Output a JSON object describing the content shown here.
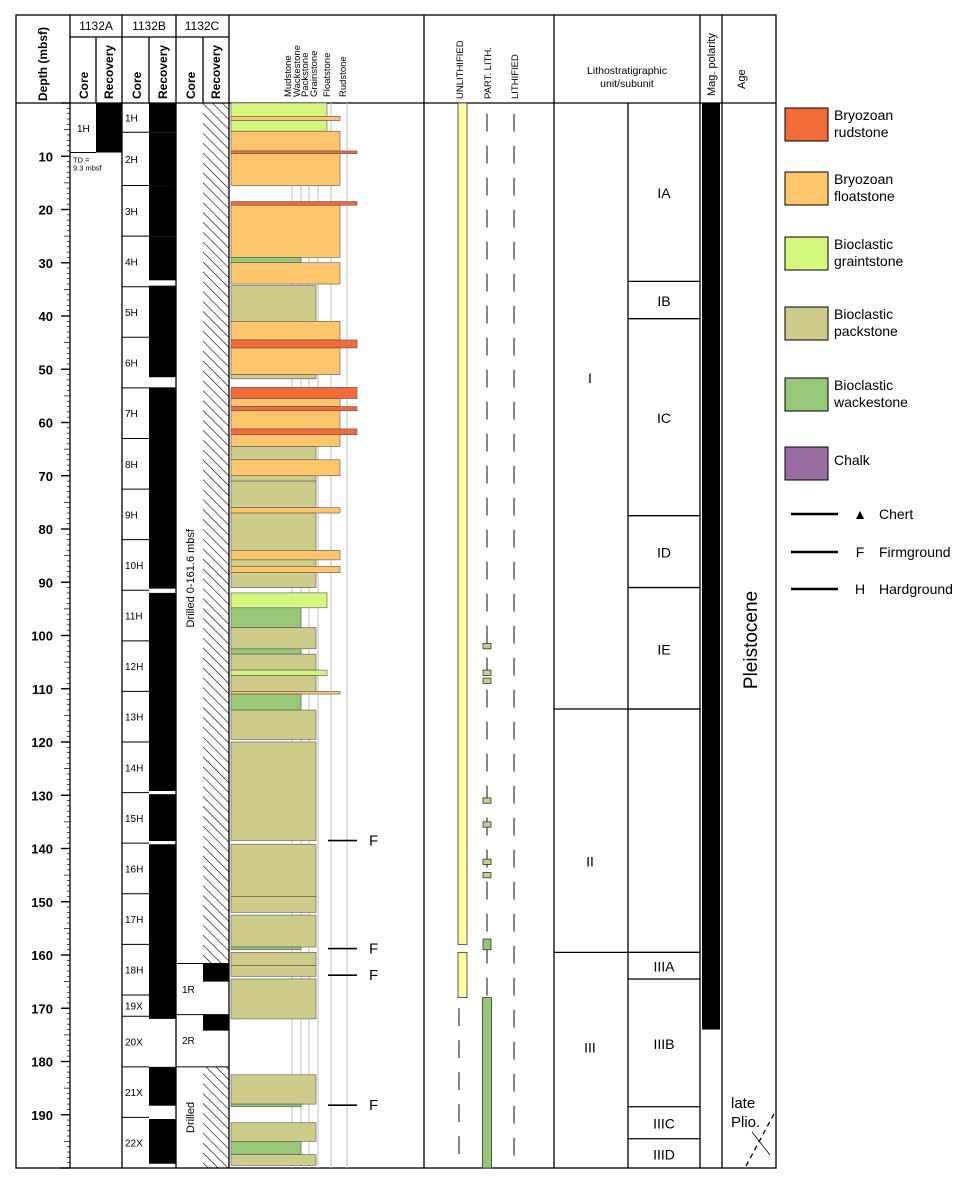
{
  "headers": {
    "depth": "Depth (mbsf)",
    "site_a": "1132A",
    "site_b": "1132B",
    "site_c": "1132C",
    "core": "Core",
    "recovery": "Recovery",
    "textures": [
      "Mudstone",
      "Wackestone",
      "Packstone",
      "Grainstone",
      "Floatstone",
      "Rudstone"
    ],
    "lithification": [
      "UNLITHIFIED",
      "PART. LITH.",
      "LITHIFIED"
    ],
    "litho_unit": "Lithostratigraphic unit/subunit",
    "mag_polarity": "Mag. polarity",
    "age": "Age"
  },
  "depth_axis": {
    "min": 0,
    "max": 200,
    "ticks": [
      10,
      20,
      30,
      40,
      50,
      60,
      70,
      80,
      90,
      100,
      110,
      120,
      130,
      140,
      150,
      160,
      170,
      180,
      190
    ]
  },
  "hole_1132A": {
    "cores": [
      {
        "name": "1H",
        "top": 0,
        "bottom": 9.3
      }
    ],
    "recovery": [
      {
        "top": 0,
        "bottom": 9.3
      }
    ],
    "note": [
      "TD =",
      "9.3 mbsf"
    ]
  },
  "hole_1132B": {
    "cores": [
      {
        "name": "1H",
        "top": 0,
        "bottom": 5.5
      },
      {
        "name": "2H",
        "top": 5.5,
        "bottom": 15.5
      },
      {
        "name": "3H",
        "top": 15.5,
        "bottom": 25
      },
      {
        "name": "4H",
        "top": 25,
        "bottom": 34.5
      },
      {
        "name": "5H",
        "top": 34.5,
        "bottom": 44
      },
      {
        "name": "6H",
        "top": 44,
        "bottom": 53.5
      },
      {
        "name": "7H",
        "top": 53.5,
        "bottom": 63
      },
      {
        "name": "8H",
        "top": 63,
        "bottom": 72.5
      },
      {
        "name": "9H",
        "top": 72.5,
        "bottom": 82
      },
      {
        "name": "10H",
        "top": 82,
        "bottom": 91.5
      },
      {
        "name": "11H",
        "top": 91.5,
        "bottom": 101
      },
      {
        "name": "12H",
        "top": 101,
        "bottom": 110.5
      },
      {
        "name": "13H",
        "top": 110.5,
        "bottom": 120
      },
      {
        "name": "14H",
        "top": 120,
        "bottom": 129.5
      },
      {
        "name": "15H",
        "top": 129.5,
        "bottom": 139
      },
      {
        "name": "16H",
        "top": 139,
        "bottom": 148.5
      },
      {
        "name": "17H",
        "top": 148.5,
        "bottom": 158
      },
      {
        "name": "18H",
        "top": 158,
        "bottom": 167.5
      },
      {
        "name": "19X",
        "top": 167.5,
        "bottom": 171.5
      },
      {
        "name": "20X",
        "top": 171.5,
        "bottom": 181
      },
      {
        "name": "21X",
        "top": 181,
        "bottom": 190.5
      },
      {
        "name": "22X",
        "top": 190.5,
        "bottom": 200
      }
    ],
    "recovery": [
      {
        "top": 0,
        "bottom": 5.5
      },
      {
        "top": 5.5,
        "bottom": 15.5
      },
      {
        "top": 15.5,
        "bottom": 25
      },
      {
        "top": 25,
        "bottom": 33.3
      },
      {
        "top": 34.3,
        "bottom": 51.5
      },
      {
        "top": 53.4,
        "bottom": 91.2
      },
      {
        "top": 92,
        "bottom": 129.2
      },
      {
        "top": 129.8,
        "bottom": 138.6
      },
      {
        "top": 139.2,
        "bottom": 172
      },
      {
        "top": 181,
        "bottom": 188.3
      },
      {
        "top": 190.8,
        "bottom": 199.2
      }
    ]
  },
  "hole_1132C": {
    "drilled_label": "Drilled 0-161.6 mbsf",
    "drilled_intervals": [
      {
        "top": 0,
        "bottom": 161.6
      },
      {
        "top": 181,
        "bottom": 200
      }
    ],
    "cores": [
      {
        "name": "1R",
        "top": 161.6,
        "bottom": 171.2
      },
      {
        "name": "2R",
        "top": 171.2,
        "bottom": 180.8
      }
    ],
    "recovery": [
      {
        "top": 161.6,
        "bottom": 165
      },
      {
        "top": 171.2,
        "bottom": 174.2
      }
    ],
    "drilled_short": "Drilled"
  },
  "lithologies": [
    {
      "name": "Bryozoan rudstone",
      "lines": [
        "Bryozoan",
        "rudstone"
      ],
      "color": "#f26b3a",
      "texture_index": 5
    },
    {
      "name": "Bryozoan floatstone",
      "lines": [
        "Bryozoan",
        "floatstone"
      ],
      "color": "#fdc66d",
      "texture_index": 4
    },
    {
      "name": "Bioclastic graintstone",
      "lines": [
        "Bioclastic",
        "graintstone"
      ],
      "color": "#d6f77d",
      "texture_index": 3
    },
    {
      "name": "Bioclastic packstone",
      "lines": [
        "Bioclastic",
        "packstone"
      ],
      "color": "#cdcc8b",
      "texture_index": 2
    },
    {
      "name": "Bioclastic wackestone",
      "lines": [
        "Bioclastic",
        "wackestone"
      ],
      "color": "#96c878",
      "texture_index": 1
    },
    {
      "name": "Chalk",
      "lines": [
        "Chalk"
      ],
      "color": "#9a6ea3",
      "texture_index": 0
    }
  ],
  "log_intervals": [
    {
      "top": 0,
      "bottom": 2.5,
      "lith": "Bioclastic graintstone"
    },
    {
      "top": 2.5,
      "bottom": 3.3,
      "lith": "Bryozoan floatstone"
    },
    {
      "top": 3.3,
      "bottom": 5.3,
      "lith": "Bioclastic graintstone"
    },
    {
      "top": 5.3,
      "bottom": 9,
      "lith": "Bryozoan floatstone"
    },
    {
      "top": 9,
      "bottom": 9.5,
      "lith": "Bryozoan rudstone"
    },
    {
      "top": 9.5,
      "bottom": 15.5,
      "lith": "Bryozoan floatstone"
    },
    {
      "top": 18.5,
      "bottom": 19.2,
      "lith": "Bryozoan rudstone"
    },
    {
      "top": 19.2,
      "bottom": 29,
      "lith": "Bryozoan floatstone"
    },
    {
      "top": 29,
      "bottom": 30,
      "lith": "Bioclastic wackestone"
    },
    {
      "top": 30,
      "bottom": 34,
      "lith": "Bryozoan floatstone"
    },
    {
      "top": 34.3,
      "bottom": 41,
      "lith": "Bioclastic packstone"
    },
    {
      "top": 41,
      "bottom": 44.5,
      "lith": "Bryozoan floatstone"
    },
    {
      "top": 44.5,
      "bottom": 46,
      "lith": "Bryozoan rudstone"
    },
    {
      "top": 46,
      "bottom": 51,
      "lith": "Bryozoan floatstone"
    },
    {
      "top": 51,
      "bottom": 51.8,
      "lith": "Bioclastic packstone"
    },
    {
      "top": 53.4,
      "bottom": 55.5,
      "lith": "Bryozoan rudstone"
    },
    {
      "top": 55.5,
      "bottom": 57,
      "lith": "Bryozoan floatstone"
    },
    {
      "top": 57,
      "bottom": 57.8,
      "lith": "Bryozoan rudstone"
    },
    {
      "top": 57.8,
      "bottom": 61.2,
      "lith": "Bryozoan floatstone"
    },
    {
      "top": 61.2,
      "bottom": 62.3,
      "lith": "Bryozoan rudstone"
    },
    {
      "top": 62.3,
      "bottom": 64.5,
      "lith": "Bryozoan floatstone"
    },
    {
      "top": 64.5,
      "bottom": 67,
      "lith": "Bioclastic packstone"
    },
    {
      "top": 67,
      "bottom": 70,
      "lith": "Bryozoan floatstone"
    },
    {
      "top": 70,
      "bottom": 71,
      "lith": "Bioclastic packstone"
    },
    {
      "top": 71,
      "bottom": 76,
      "lith": "Bioclastic packstone"
    },
    {
      "top": 76,
      "bottom": 77,
      "lith": "Bryozoan floatstone"
    },
    {
      "top": 77,
      "bottom": 84,
      "lith": "Bioclastic packstone"
    },
    {
      "top": 84,
      "bottom": 85.8,
      "lith": "Bryozoan floatstone"
    },
    {
      "top": 85.8,
      "bottom": 87,
      "lith": "Bioclastic packstone"
    },
    {
      "top": 87,
      "bottom": 88.2,
      "lith": "Bryozoan floatstone"
    },
    {
      "top": 88.2,
      "bottom": 91,
      "lith": "Bioclastic packstone"
    },
    {
      "top": 92,
      "bottom": 94.8,
      "lith": "Bioclastic graintstone"
    },
    {
      "top": 94.8,
      "bottom": 98.5,
      "lith": "Bioclastic wackestone"
    },
    {
      "top": 98.5,
      "bottom": 102.5,
      "lith": "Bioclastic packstone"
    },
    {
      "top": 102.5,
      "bottom": 103.5,
      "lith": "Bioclastic wackestone"
    },
    {
      "top": 103.5,
      "bottom": 106.5,
      "lith": "Bioclastic packstone"
    },
    {
      "top": 106.5,
      "bottom": 107.5,
      "lith": "Bioclastic graintstone"
    },
    {
      "top": 107.5,
      "bottom": 110.5,
      "lith": "Bioclastic packstone"
    },
    {
      "top": 110.5,
      "bottom": 111,
      "lith": "Bryozoan floatstone"
    },
    {
      "top": 111,
      "bottom": 114,
      "lith": "Bioclastic wackestone"
    },
    {
      "top": 114,
      "bottom": 119.5,
      "lith": "Bioclastic packstone"
    },
    {
      "top": 120,
      "bottom": 138.5,
      "lith": "Bioclastic packstone"
    },
    {
      "top": 139.2,
      "bottom": 149,
      "lith": "Bioclastic packstone"
    },
    {
      "top": 149,
      "bottom": 152,
      "lith": "Bioclastic packstone"
    },
    {
      "top": 152.5,
      "bottom": 158.5,
      "lith": "Bioclastic packstone"
    },
    {
      "top": 158.5,
      "bottom": 159,
      "lith": "Bioclastic wackestone"
    },
    {
      "top": 159.5,
      "bottom": 162,
      "lith": "Bioclastic packstone"
    },
    {
      "top": 162,
      "bottom": 164,
      "lith": "Bioclastic packstone"
    },
    {
      "top": 164.5,
      "bottom": 172,
      "lith": "Bioclastic packstone"
    },
    {
      "top": 182.5,
      "bottom": 188,
      "lith": "Bioclastic packstone"
    },
    {
      "top": 188,
      "bottom": 188.5,
      "lith": "Bioclastic wackestone"
    },
    {
      "top": 191.5,
      "bottom": 195,
      "lith": "Bioclastic packstone"
    },
    {
      "top": 195,
      "bottom": 197.5,
      "lith": "Bioclastic wackestone"
    },
    {
      "top": 197.5,
      "bottom": 199.5,
      "lith": "Bioclastic packstone"
    }
  ],
  "surfaces": [
    {
      "depth": 138.5,
      "label": "F"
    },
    {
      "depth": 158.8,
      "label": "F"
    },
    {
      "depth": 163.8,
      "label": "F"
    },
    {
      "depth": 188.2,
      "label": "F"
    }
  ],
  "lithification": {
    "unlithified": [
      {
        "top": 0,
        "bottom": 158
      },
      {
        "top": 159.5,
        "bottom": 168
      }
    ],
    "partial": [
      {
        "top": 101.5,
        "bottom": 102.5,
        "color": "#cdcc8b"
      },
      {
        "top": 106.5,
        "bottom": 107.5,
        "color": "#cdcc8b"
      },
      {
        "top": 108,
        "bottom": 109,
        "color": "#cdcc8b"
      },
      {
        "top": 130.5,
        "bottom": 131.5,
        "color": "#cdcc8b"
      },
      {
        "top": 135,
        "bottom": 136,
        "color": "#cdcc8b"
      },
      {
        "top": 142,
        "bottom": 143,
        "color": "#cdcc8b"
      },
      {
        "top": 144.5,
        "bottom": 145.5,
        "color": "#cdcc8b"
      },
      {
        "top": 157,
        "bottom": 159,
        "color": "#96c878"
      },
      {
        "top": 168,
        "bottom": 200,
        "color": "#96c878"
      }
    ]
  },
  "units": [
    {
      "name": "I",
      "top": 0,
      "bottom": 113.8
    },
    {
      "name": "II",
      "top": 113.8,
      "bottom": 159.5
    },
    {
      "name": "III",
      "top": 159.5,
      "bottom": 200
    }
  ],
  "subunits": [
    {
      "name": "IA",
      "top": 0,
      "bottom": 33.5
    },
    {
      "name": "IB",
      "top": 33.5,
      "bottom": 40.5
    },
    {
      "name": "IC",
      "top": 40.5,
      "bottom": 77.5
    },
    {
      "name": "ID",
      "top": 77.5,
      "bottom": 91
    },
    {
      "name": "IE",
      "top": 91,
      "bottom": 113.8
    },
    {
      "name": "",
      "top": 113.8,
      "bottom": 159.5
    },
    {
      "name": "IIIA",
      "top": 159.5,
      "bottom": 164.5
    },
    {
      "name": "IIIB",
      "top": 164.5,
      "bottom": 188.5
    },
    {
      "name": "IIIC",
      "top": 188.5,
      "bottom": 194.5
    },
    {
      "name": "IIID",
      "top": 194.5,
      "bottom": 200
    }
  ],
  "polarity": [
    {
      "top": 0,
      "bottom": 174,
      "state": "normal"
    }
  ],
  "age": {
    "pleistocene": "Pleistocene",
    "late": "late",
    "plio": "Plio."
  },
  "legend_symbols": [
    {
      "symbol": "▲",
      "label": "Chert"
    },
    {
      "symbol": "F",
      "label": "Firmground"
    },
    {
      "symbol": "H",
      "label": "Hardground"
    }
  ]
}
